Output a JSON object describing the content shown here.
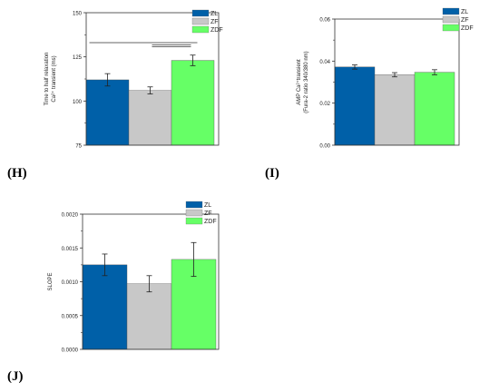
{
  "colors": {
    "ZL": "#0060a8",
    "ZF": "#c8c8c8",
    "ZDF": "#66ff66",
    "axis": "#333333",
    "error": "#222222"
  },
  "panels": [
    {
      "letter": "(H)"
    },
    {
      "letter": "(I)"
    },
    {
      "letter": "(J)"
    }
  ],
  "chart_data": [
    {
      "type": "bar",
      "categories": [
        "ZL",
        "ZF",
        "ZDF"
      ],
      "values": [
        112,
        106,
        123
      ],
      "errors": [
        3.5,
        2,
        3
      ],
      "ylabel_lines": [
        "Time to half relaxation",
        "Ca²⁺ transient (ms)"
      ],
      "ylim": [
        75,
        150
      ],
      "yticks": [
        "75",
        "100",
        "125",
        "150"
      ],
      "legend": [
        "ZL",
        "ZF",
        "ZDF"
      ],
      "legend_position": "top-right",
      "significance_lines": [
        [
          0,
          2
        ],
        [
          1,
          2
        ],
        [
          1,
          2
        ]
      ]
    },
    {
      "type": "bar",
      "categories": [
        "ZL",
        "ZF",
        "ZDF"
      ],
      "values": [
        0.0372,
        0.0335,
        0.0347
      ],
      "errors": [
        0.001,
        0.001,
        0.0012
      ],
      "ylabel_lines": [
        "AMP Ca²⁺transient",
        "(Fura-2 ratio 340/380 nm)"
      ],
      "ylim": [
        0,
        0.06
      ],
      "yticks": [
        "0.00",
        "0.02",
        "0.04",
        "0.06"
      ],
      "legend": [
        "ZL",
        "ZF",
        "ZDF"
      ],
      "legend_position": "top-right"
    },
    {
      "type": "bar",
      "categories": [
        "ZL",
        "ZF",
        "ZDF"
      ],
      "values": [
        0.00125,
        0.00097,
        0.00133
      ],
      "errors": [
        0.00016,
        0.00012,
        0.00025
      ],
      "ylabel_lines": [
        "SLOPE"
      ],
      "ylim": [
        0,
        0.002
      ],
      "yticks": [
        "0.0000",
        "0.0005",
        "0.0010",
        "0.0015",
        "0.0020"
      ],
      "legend": [
        "ZL",
        "ZF",
        "ZDF"
      ],
      "legend_position": "top-center"
    }
  ]
}
